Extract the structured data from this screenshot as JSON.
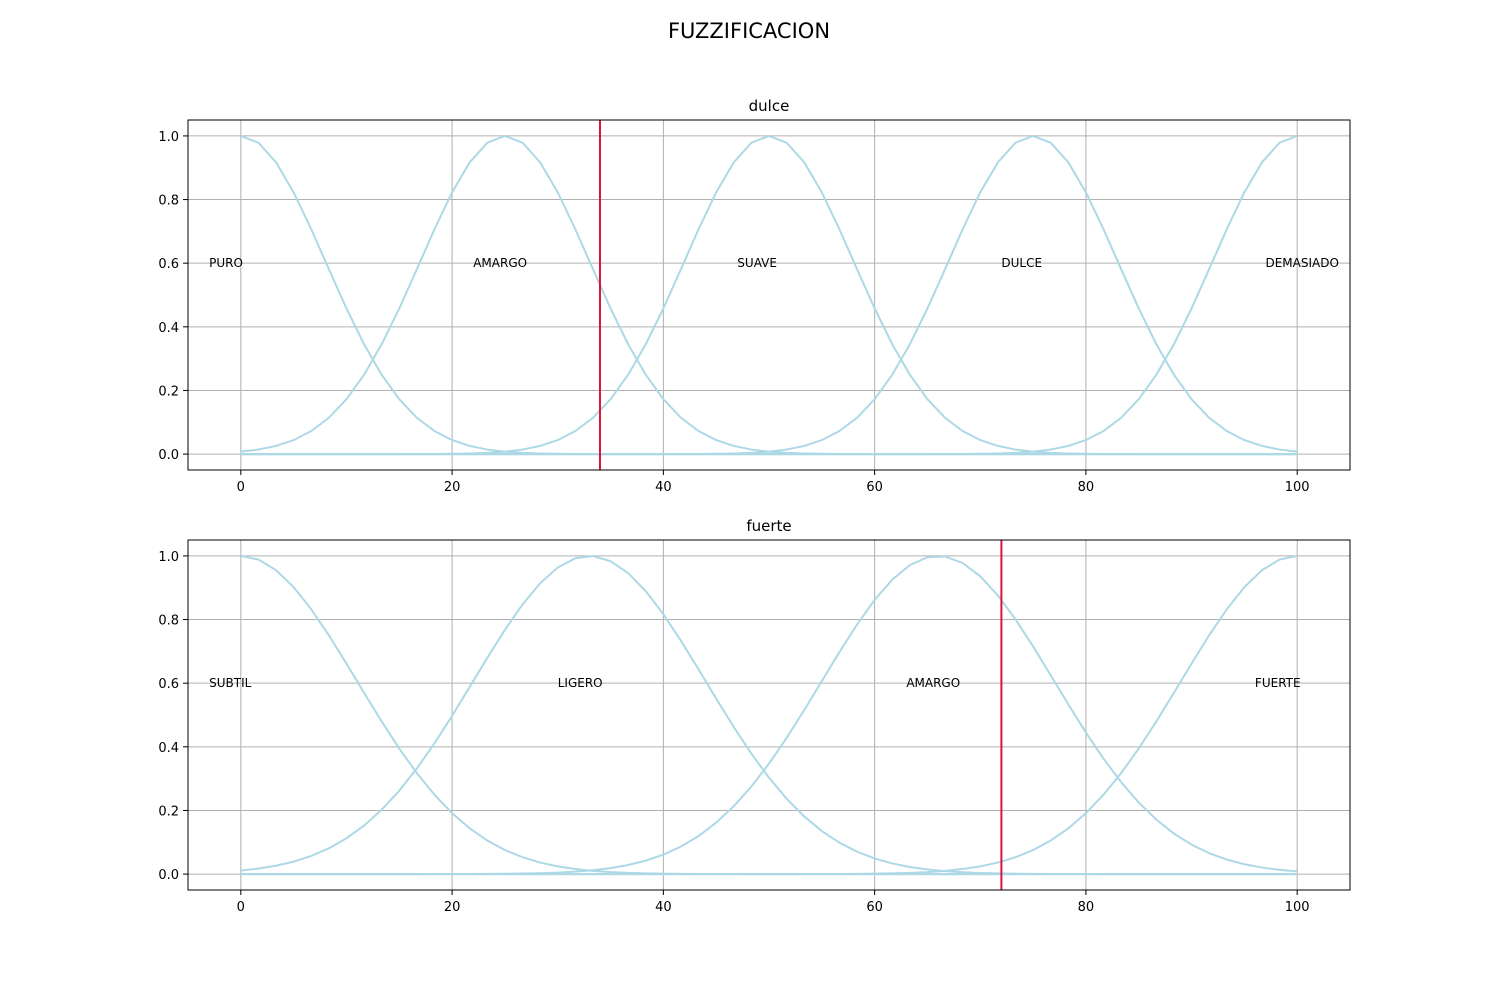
{
  "figure_title": "FUZZIFICACION",
  "chart_data": [
    {
      "type": "line",
      "title": "dulce",
      "xlabel": "",
      "ylabel": "",
      "xlim": [
        -5,
        105
      ],
      "ylim": [
        -0.05,
        1.05
      ],
      "xticks": [
        0,
        20,
        40,
        60,
        80,
        100
      ],
      "yticks": [
        0.0,
        0.2,
        0.4,
        0.6,
        0.8,
        1.0
      ],
      "grid": true,
      "curve_color": "#add8e6",
      "marker_color": "#dc143c",
      "input_value": 34,
      "x_domain": [
        0,
        100
      ],
      "sets": [
        {
          "label": "PURO",
          "center": 0,
          "sigma": 8,
          "label_x": -3,
          "label_y": 0.6
        },
        {
          "label": "AMARGO",
          "center": 25,
          "sigma": 8,
          "label_x": 22,
          "label_y": 0.6
        },
        {
          "label": "SUAVE",
          "center": 50,
          "sigma": 8,
          "label_x": 47,
          "label_y": 0.6
        },
        {
          "label": "DULCE",
          "center": 75,
          "sigma": 8,
          "label_x": 72,
          "label_y": 0.6
        },
        {
          "label": "DEMASIADO",
          "center": 100,
          "sigma": 8,
          "label_x": 97,
          "label_y": 0.6
        }
      ]
    },
    {
      "type": "line",
      "title": "fuerte",
      "xlabel": "",
      "ylabel": "",
      "xlim": [
        -5,
        105
      ],
      "ylim": [
        -0.05,
        1.05
      ],
      "xticks": [
        0,
        20,
        40,
        60,
        80,
        100
      ],
      "yticks": [
        0.0,
        0.2,
        0.4,
        0.6,
        0.8,
        1.0
      ],
      "grid": true,
      "curve_color": "#add8e6",
      "marker_color": "#dc143c",
      "input_value": 72,
      "x_domain": [
        0,
        100
      ],
      "sets": [
        {
          "label": "SUBTIL",
          "center": 0,
          "sigma": 11,
          "label_x": -3,
          "label_y": 0.6
        },
        {
          "label": "LIGERO",
          "center": 33,
          "sigma": 11,
          "label_x": 30,
          "label_y": 0.6
        },
        {
          "label": "AMARGO",
          "center": 66,
          "sigma": 11,
          "label_x": 63,
          "label_y": 0.6
        },
        {
          "label": "FUERTE",
          "center": 100,
          "sigma": 11,
          "label_x": 96,
          "label_y": 0.6
        }
      ]
    }
  ]
}
